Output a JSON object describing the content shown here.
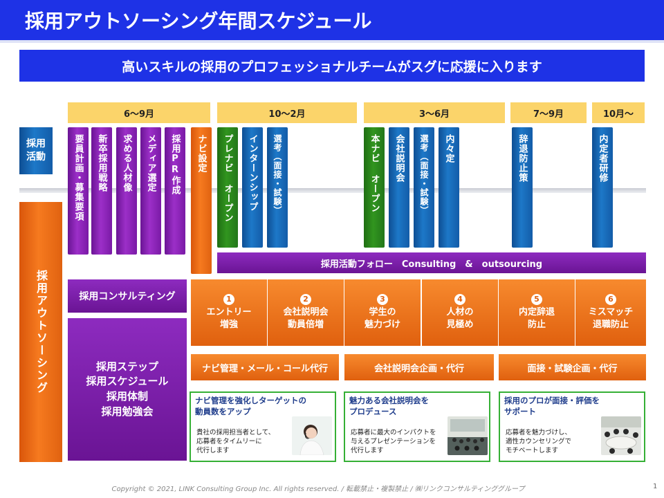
{
  "header": {
    "title": "採用アウトソーシング年間スケジュール",
    "subtitle": "高いスキルの採用のプロフェッショナルチームがスグに応援に入ります"
  },
  "periods": [
    "6～9月",
    "10～2月",
    "3～6月",
    "7～9月",
    "10月～"
  ],
  "row_labels": {
    "activity": [
      "採用",
      "活動"
    ],
    "outsourcing": "採用アウトソーシング"
  },
  "activities": [
    {
      "text": "要員計画・募集要項",
      "color": "purple"
    },
    {
      "text": "新卒採用戦略",
      "color": "purple"
    },
    {
      "text": "求める人材像",
      "color": "purple"
    },
    {
      "text": "メディア選定",
      "color": "purple"
    },
    {
      "text": "採用PR作成",
      "color": "purple"
    },
    {
      "text": "ナビ設定",
      "color": "orange"
    },
    {
      "text": "プレナビ オープン",
      "color": "green"
    },
    {
      "text": "インターンシップ",
      "color": "blue"
    },
    {
      "text": "選考（面接・試験）",
      "color": "blue"
    },
    {
      "text": "本ナビ オープン",
      "color": "green"
    },
    {
      "text": "会社説明会",
      "color": "blue"
    },
    {
      "text": "選考（面接・試験）",
      "color": "blue"
    },
    {
      "text": "内々定",
      "color": "blue"
    },
    {
      "text": "辞退防止策",
      "color": "blue"
    },
    {
      "text": "内定者研修",
      "color": "blue"
    }
  ],
  "follow_bar": "採用活動フォロー　Consulting　&　outsourcing",
  "consulting_box": "採用コンサルティング",
  "steps_box": [
    "採用ステップ",
    "採用スケジュール",
    "採用体制",
    "採用勉強会"
  ],
  "phases": [
    {
      "num": "1",
      "lines": [
        "エントリー",
        "増強"
      ]
    },
    {
      "num": "2",
      "lines": [
        "会社説明会",
        "動員倍増"
      ]
    },
    {
      "num": "3",
      "lines": [
        "学生の",
        "魅力づけ"
      ]
    },
    {
      "num": "4",
      "lines": [
        "人材の",
        "見極め"
      ]
    },
    {
      "num": "5",
      "lines": [
        "内定辞退",
        "防止"
      ]
    },
    {
      "num": "6",
      "lines": [
        "ミスマッチ",
        "退職防止"
      ]
    }
  ],
  "services": [
    "ナビ管理・メール・コール代行",
    "会社説明会企画・代行",
    "面接・試験企画・代行"
  ],
  "cards": [
    {
      "title": [
        "ナビ管理を強化しターゲットの",
        "動員数をアップ"
      ],
      "body": [
        "貴社の採用担当者として、",
        "応募者をタイムリーに",
        "代行します"
      ]
    },
    {
      "title": [
        "魅力ある会社説明会を",
        "プロデュース"
      ],
      "body": [
        "応募者に最大のインパクトを",
        "与えるプレゼンテーションを",
        "代行します"
      ]
    },
    {
      "title": [
        "採用のプロが面接・評価を",
        "サポート"
      ],
      "body": [
        "応募者を魅力づけし、",
        "適性カウンセリングで",
        "モチベートします"
      ]
    }
  ],
  "footer": "Copyright © 2021, LINK Consulting Group Inc. All rights reserved. / 転載禁止・複製禁止 / ㈱リンクコンサルティンググループ",
  "page_number": "1",
  "colors": {
    "title_blue": "#1e32e6",
    "purple": "#8d2bbf",
    "orange": "#f07020",
    "green": "#31951f",
    "blue": "#1d78c8",
    "period_yellow": "#fbd46a",
    "card_border": "#35b035"
  }
}
